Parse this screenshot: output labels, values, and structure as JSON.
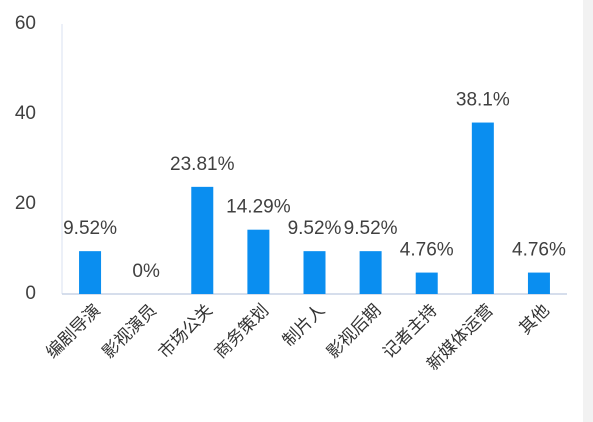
{
  "chart_data": {
    "type": "bar",
    "categories": [
      "编剧导演",
      "影视演员",
      "市场公关",
      "商务策划",
      "制片人",
      "影视后期",
      "记者主持",
      "新媒体运营",
      "其他"
    ],
    "values": [
      9.52,
      0,
      23.81,
      14.29,
      9.52,
      9.52,
      4.76,
      38.1,
      4.76
    ],
    "value_labels": [
      "9.52%",
      "0%",
      "23.81%",
      "14.29%",
      "9.52%",
      "9.52%",
      "4.76%",
      "38.1%",
      "4.76%"
    ],
    "color": "#0a8ef0",
    "ylim": [
      0,
      60
    ],
    "yticks": [
      0,
      20,
      40,
      60
    ],
    "grid": false
  }
}
